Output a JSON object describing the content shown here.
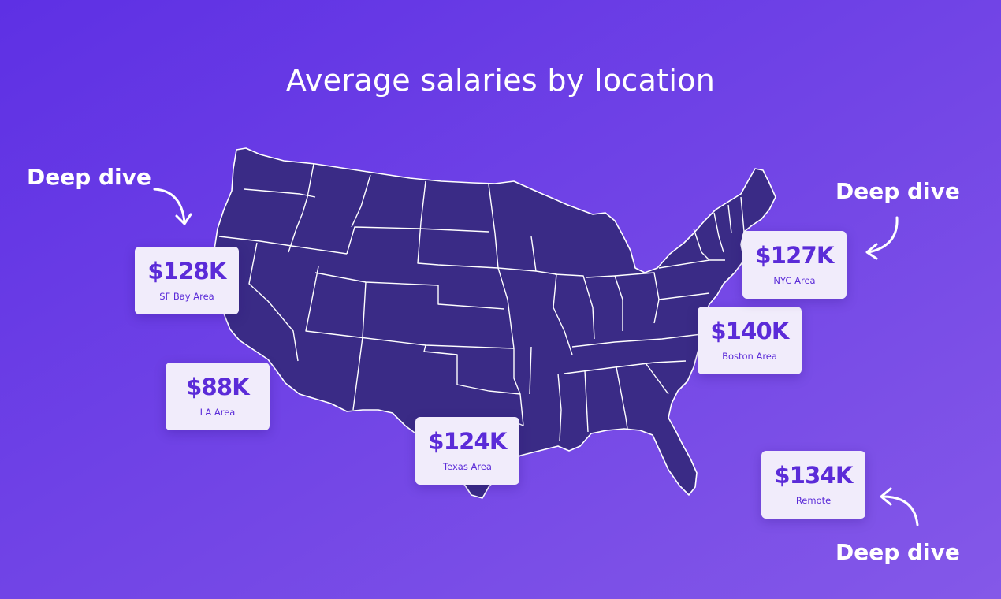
{
  "colors": {
    "bg_start": "#5E30E4",
    "bg_end": "#8458E8",
    "map_fill": "#3A2B86",
    "map_stroke": "#FFFFFF",
    "card_bg": "#F1ECFB",
    "card_value": "#5B2BD8",
    "card_label": "#5B2BD8",
    "text": "#FFFFFF"
  },
  "title": "Average salaries by location",
  "map_name": "us-map-with-state-borders",
  "locations": [
    {
      "value": "$128K",
      "label": "SF Bay Area"
    },
    {
      "value": "$88K",
      "label": "LA Area"
    },
    {
      "value": "$124K",
      "label": "Texas Area"
    },
    {
      "value": "$140K",
      "label": "Boston Area"
    },
    {
      "value": "$127K",
      "label": "NYC Area"
    },
    {
      "value": "$134K",
      "label": "Remote"
    }
  ],
  "deep_dive": {
    "left": "Deep dive",
    "right_top": "Deep dive",
    "right_bottom": "Deep dive"
  },
  "icons": {
    "arrow": "curved-arrow-icon"
  }
}
